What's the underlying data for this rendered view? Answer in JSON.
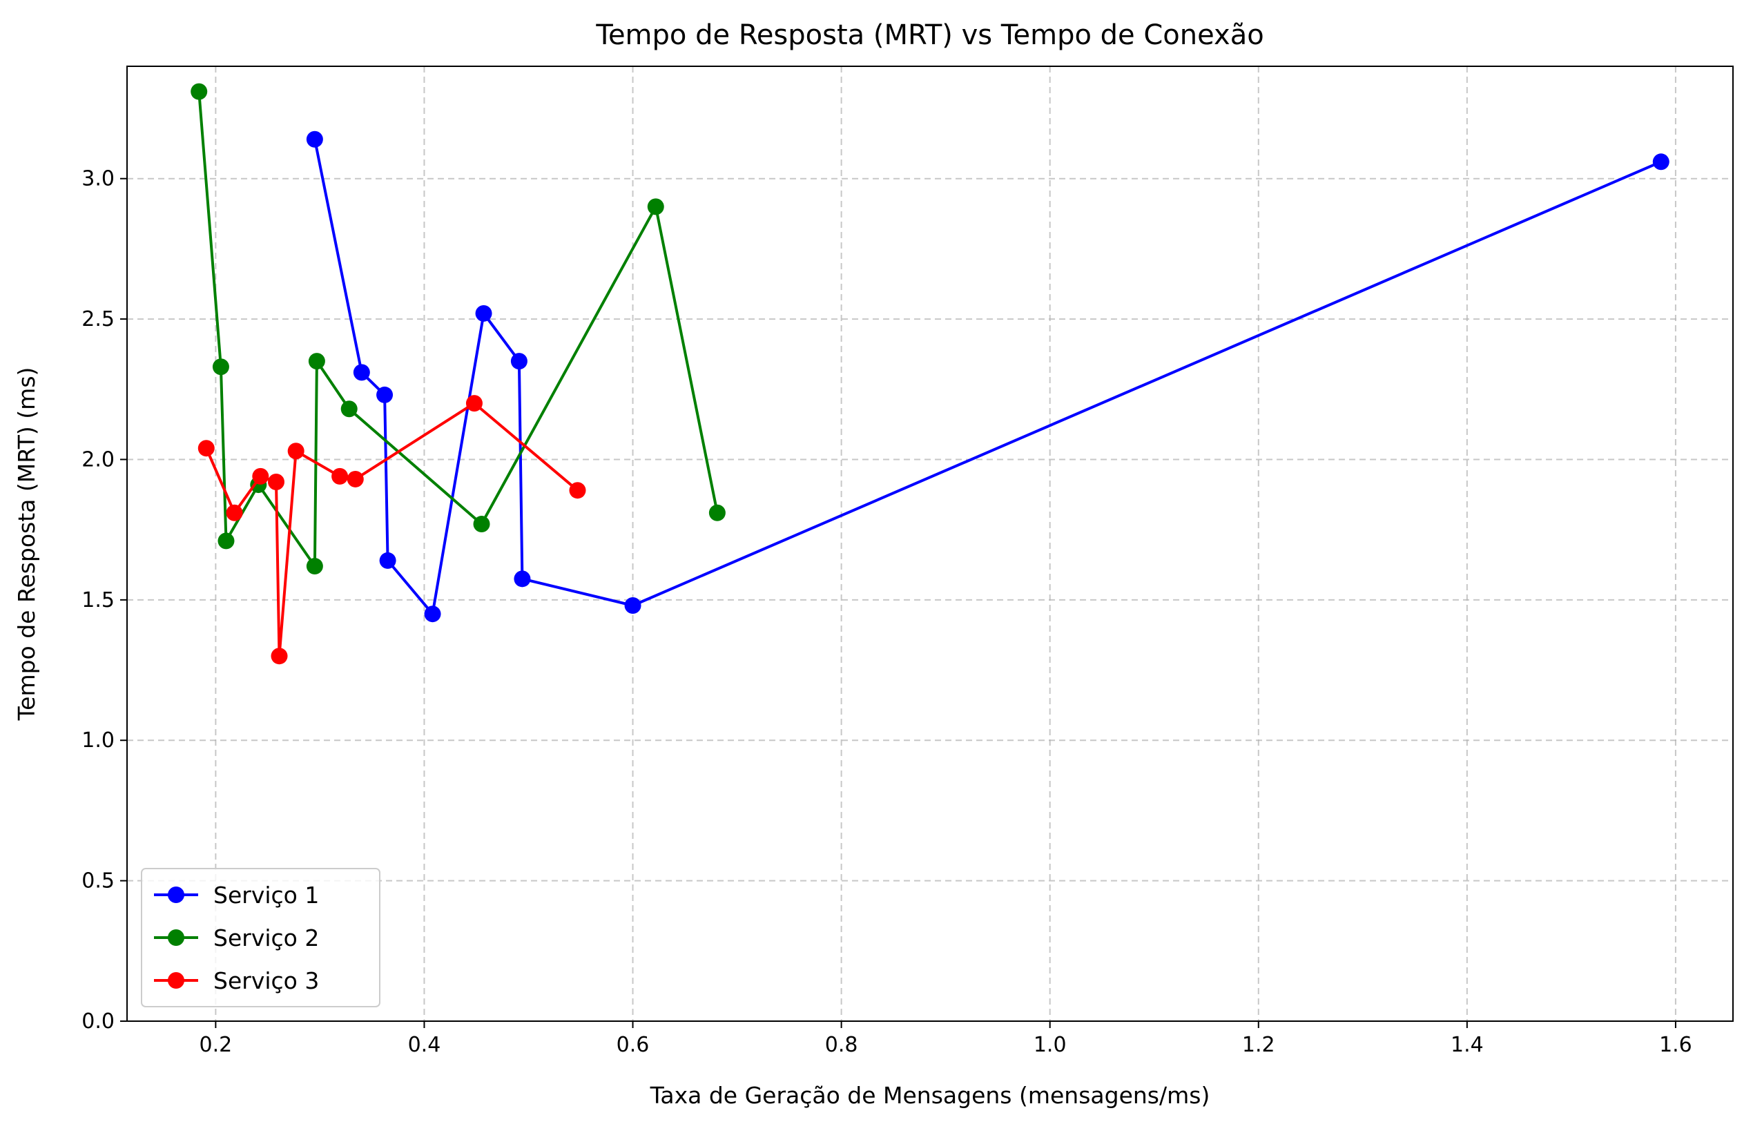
{
  "chart_data": {
    "type": "line",
    "title": "Tempo de Resposta (MRT) vs Tempo de Conexão",
    "xlabel": "Taxa de Geração de Mensagens (mensagens/ms)",
    "ylabel": "Tempo de Resposta (MRT) (ms)",
    "xlim": [
      0.115,
      1.655
    ],
    "ylim": [
      0.0,
      3.4
    ],
    "xticks": [
      0.2,
      0.4,
      0.6,
      0.8,
      1.0,
      1.2,
      1.4,
      1.6
    ],
    "xtick_labels": [
      "0.2",
      "0.4",
      "0.6",
      "0.8",
      "1.0",
      "1.2",
      "1.4",
      "1.6"
    ],
    "yticks": [
      0.0,
      0.5,
      1.0,
      1.5,
      2.0,
      2.5,
      3.0
    ],
    "ytick_labels": [
      "0.0",
      "0.5",
      "1.0",
      "1.5",
      "2.0",
      "2.5",
      "3.0"
    ],
    "grid": true,
    "legend_position": "lower-left",
    "series": [
      {
        "name": "Serviço 1",
        "color": "#0000ff",
        "x": [
          0.295,
          0.34,
          0.362,
          0.365,
          0.408,
          0.457,
          0.491,
          0.494,
          0.6,
          1.586
        ],
        "y": [
          3.14,
          2.31,
          2.23,
          1.64,
          1.45,
          2.52,
          2.35,
          1.575,
          1.48,
          3.06
        ]
      },
      {
        "name": "Serviço 2",
        "color": "#008000",
        "x": [
          0.184,
          0.205,
          0.21,
          0.241,
          0.295,
          0.297,
          0.328,
          0.455,
          0.622,
          0.681
        ],
        "y": [
          3.31,
          2.33,
          1.71,
          1.91,
          1.62,
          2.35,
          2.18,
          1.77,
          2.9,
          1.81
        ]
      },
      {
        "name": "Serviço 3",
        "color": "#ff0000",
        "x": [
          0.191,
          0.218,
          0.243,
          0.258,
          0.261,
          0.277,
          0.319,
          0.334,
          0.448,
          0.547
        ],
        "y": [
          2.04,
          1.81,
          1.94,
          1.92,
          1.3,
          2.03,
          1.94,
          1.93,
          2.2,
          1.89
        ]
      }
    ]
  }
}
